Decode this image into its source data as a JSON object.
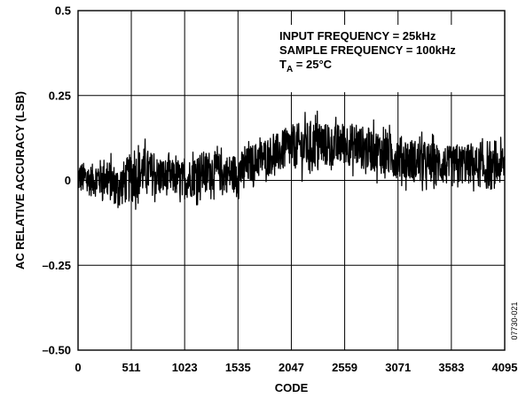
{
  "chart_data": {
    "type": "line",
    "xlabel": "CODE",
    "ylabel": "AC RELATIVE ACCURACY (LSB)",
    "xlim": [
      0,
      4095
    ],
    "ylim": [
      -0.5,
      0.5
    ],
    "x_ticks": [
      0,
      511,
      1023,
      1535,
      2047,
      2559,
      3071,
      3583,
      4095
    ],
    "x_tick_labels": [
      "0",
      "511",
      "1023",
      "1535",
      "2047",
      "2559",
      "3071",
      "3583",
      "4095"
    ],
    "y_ticks": [
      -0.5,
      -0.25,
      0,
      0.25,
      0.5
    ],
    "y_tick_labels": [
      "–0.50",
      "–0.25",
      "0",
      "0.25",
      "0.5"
    ],
    "grid": true,
    "annotations": {
      "line1": "INPUT FREQUENCY = 25kHz",
      "line2": "SAMPLE FREQUENCY = 100kHz",
      "line3_main": "T",
      "line3_sub": "A",
      "line3_rest": " = 25°C"
    },
    "figure_id": "07730-021",
    "series": [
      {
        "x": [
          0,
          128,
          256,
          384,
          512,
          640,
          768,
          896,
          1023,
          1151,
          1279,
          1407,
          1535,
          1663,
          1791,
          1919,
          2047,
          2175,
          2303,
          2431,
          2559,
          2687,
          2815,
          2943,
          3071,
          3199,
          3327,
          3455,
          3583,
          3711,
          3839,
          3967,
          4095
        ],
        "upper": [
          0.07,
          0.06,
          0.08,
          0.05,
          0.09,
          0.11,
          0.08,
          0.07,
          0.06,
          0.09,
          0.1,
          0.08,
          0.09,
          0.11,
          0.13,
          0.15,
          0.17,
          0.18,
          0.19,
          0.17,
          0.18,
          0.17,
          0.16,
          0.15,
          0.14,
          0.13,
          0.12,
          0.12,
          0.11,
          0.12,
          0.11,
          0.1,
          0.11
        ],
        "lower": [
          -0.04,
          -0.05,
          -0.06,
          -0.09,
          -0.08,
          -0.05,
          -0.06,
          -0.05,
          -0.07,
          -0.06,
          -0.04,
          -0.05,
          -0.05,
          -0.02,
          0.0,
          0.01,
          0.02,
          0.01,
          0.02,
          0.03,
          0.03,
          0.02,
          0.01,
          0.0,
          -0.01,
          -0.02,
          -0.03,
          -0.02,
          -0.03,
          -0.02,
          -0.03,
          -0.04,
          -0.02
        ],
        "mid": [
          0.01,
          0.0,
          0.01,
          -0.02,
          0.01,
          0.03,
          0.01,
          0.01,
          0.0,
          0.02,
          0.03,
          0.02,
          0.02,
          0.05,
          0.07,
          0.08,
          0.1,
          0.1,
          0.11,
          0.1,
          0.11,
          0.1,
          0.09,
          0.08,
          0.07,
          0.06,
          0.05,
          0.05,
          0.04,
          0.05,
          0.04,
          0.03,
          0.05
        ]
      }
    ]
  },
  "colors": {
    "data": "#000000",
    "grid": "#000000",
    "background": "#ffffff"
  }
}
